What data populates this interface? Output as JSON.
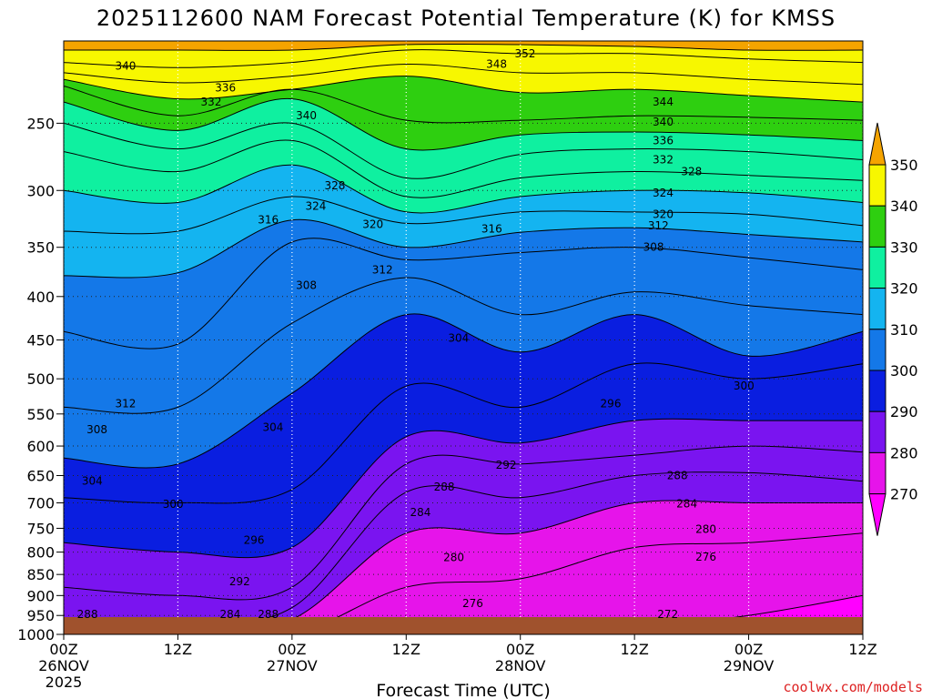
{
  "chart_data": {
    "type": "contour",
    "title": "2025112600 NAM Forecast Potential Temperature (K) for KMSS",
    "xlabel": "Forecast Time (UTC)",
    "ylabel": "",
    "credit": "coolwx.com/models",
    "x_hours": [
      0,
      12,
      24,
      36,
      48,
      60,
      72,
      84
    ],
    "x_ticks": [
      {
        "hour": 0,
        "line1": "00Z",
        "line2": "26NOV",
        "line3": "2025"
      },
      {
        "hour": 12,
        "line1": "12Z",
        "line2": "",
        "line3": ""
      },
      {
        "hour": 24,
        "line1": "00Z",
        "line2": "27NOV",
        "line3": ""
      },
      {
        "hour": 36,
        "line1": "12Z",
        "line2": "",
        "line3": ""
      },
      {
        "hour": 48,
        "line1": "00Z",
        "line2": "28NOV",
        "line3": ""
      },
      {
        "hour": 60,
        "line1": "12Z",
        "line2": "",
        "line3": ""
      },
      {
        "hour": 72,
        "line1": "00Z",
        "line2": "29NOV",
        "line3": ""
      },
      {
        "hour": 84,
        "line1": "12Z",
        "line2": "",
        "line3": ""
      }
    ],
    "y_axis": {
      "units": "hPa",
      "min": 200,
      "max": 1000,
      "scale": "log",
      "ticks": [
        250,
        300,
        350,
        400,
        450,
        500,
        550,
        600,
        650,
        700,
        750,
        800,
        850,
        900,
        950,
        1000
      ]
    },
    "colorbar": {
      "values": [
        350,
        340,
        330,
        320,
        310,
        300,
        290,
        280,
        270
      ],
      "bands": [
        {
          "from": 340,
          "to": 350,
          "color": "#f7f700"
        },
        {
          "from": 330,
          "to": 340,
          "color": "#2ecf10"
        },
        {
          "from": 320,
          "to": 330,
          "color": "#0ff0a0"
        },
        {
          "from": 310,
          "to": 320,
          "color": "#14b4f0"
        },
        {
          "from": 300,
          "to": 310,
          "color": "#1478e8"
        },
        {
          "from": 290,
          "to": 300,
          "color": "#0a1ee0"
        },
        {
          "from": 280,
          "to": 290,
          "color": "#7a14f0"
        },
        {
          "from": 270,
          "to": 280,
          "color": "#e614ea"
        }
      ],
      "over_color": "#f5a400",
      "under_color": "#ff00ff"
    },
    "isentropes": [
      {
        "theta": 352,
        "pressure_at_hours": [
          205,
          205,
          205,
          202,
          202,
          203,
          205,
          205
        ]
      },
      {
        "theta": 348,
        "pressure_at_hours": [
          212,
          215,
          212,
          205,
          207,
          207,
          210,
          212
        ]
      },
      {
        "theta": 344,
        "pressure_at_hours": [
          218,
          224,
          220,
          213,
          218,
          218,
          222,
          225
        ]
      },
      {
        "theta": 340,
        "pressure_at_hours": [
          222,
          234,
          228,
          220,
          230,
          228,
          232,
          236
        ]
      },
      {
        "theta": 336,
        "pressure_at_hours": [
          226,
          245,
          228,
          248,
          248,
          245,
          246,
          248
        ]
      },
      {
        "theta": 332,
        "pressure_at_hours": [
          236,
          255,
          234,
          268,
          258,
          256,
          258,
          262
        ]
      },
      {
        "theta": 328,
        "pressure_at_hours": [
          250,
          268,
          250,
          290,
          272,
          268,
          270,
          276
        ]
      },
      {
        "theta": 324,
        "pressure_at_hours": [
          270,
          285,
          262,
          305,
          290,
          285,
          288,
          292
        ]
      },
      {
        "theta": 320,
        "pressure_at_hours": [
          300,
          310,
          280,
          318,
          305,
          300,
          302,
          310
        ]
      },
      {
        "theta": 316,
        "pressure_at_hours": [
          335,
          335,
          305,
          328,
          318,
          318,
          320,
          330
        ]
      },
      {
        "theta": 312,
        "pressure_at_hours": [
          378,
          375,
          325,
          350,
          336,
          332,
          338,
          345
        ]
      },
      {
        "theta": 308,
        "pressure_at_hours": [
          440,
          455,
          345,
          362,
          355,
          350,
          360,
          372
        ]
      },
      {
        "theta": 304,
        "pressure_at_hours": [
          540,
          540,
          430,
          380,
          420,
          395,
          410,
          420
        ]
      },
      {
        "theta": 300,
        "pressure_at_hours": [
          620,
          630,
          520,
          420,
          465,
          420,
          470,
          440
        ]
      },
      {
        "theta": 296,
        "pressure_at_hours": [
          690,
          700,
          675,
          510,
          540,
          480,
          500,
          480
        ]
      },
      {
        "theta": 292,
        "pressure_at_hours": [
          780,
          800,
          790,
          585,
          595,
          560,
          560,
          560
        ]
      },
      {
        "theta": 288,
        "pressure_at_hours": [
          880,
          900,
          880,
          630,
          630,
          615,
          600,
          610
        ]
      },
      {
        "theta": 284,
        "pressure_at_hours": [
          960,
          975,
          930,
          680,
          690,
          650,
          645,
          660
        ]
      },
      {
        "theta": 280,
        "pressure_at_hours": [
          1000,
          1000,
          960,
          760,
          760,
          700,
          700,
          700
        ]
      },
      {
        "theta": 276,
        "pressure_at_hours": [
          1000,
          1000,
          1000,
          880,
          860,
          790,
          780,
          760
        ]
      },
      {
        "theta": 272,
        "pressure_at_hours": [
          1000,
          1000,
          1000,
          990,
          960,
          980,
          950,
          900
        ]
      }
    ],
    "contour_labels": [
      {
        "text": "352",
        "hour": 48.5,
        "p": 207
      },
      {
        "text": "348",
        "hour": 45.5,
        "p": 213
      },
      {
        "text": "340",
        "hour": 6.5,
        "p": 214
      },
      {
        "text": "336",
        "hour": 17.0,
        "p": 227
      },
      {
        "text": "332",
        "hour": 15.5,
        "p": 236
      },
      {
        "text": "340",
        "hour": 25.5,
        "p": 245
      },
      {
        "text": "344",
        "hour": 63.0,
        "p": 236
      },
      {
        "text": "340",
        "hour": 63.0,
        "p": 249
      },
      {
        "text": "336",
        "hour": 63.0,
        "p": 262
      },
      {
        "text": "332",
        "hour": 63.0,
        "p": 276
      },
      {
        "text": "328",
        "hour": 66.0,
        "p": 285
      },
      {
        "text": "328",
        "hour": 28.5,
        "p": 296
      },
      {
        "text": "324",
        "hour": 63.0,
        "p": 302
      },
      {
        "text": "320",
        "hour": 63.0,
        "p": 320
      },
      {
        "text": "324",
        "hour": 26.5,
        "p": 313
      },
      {
        "text": "316",
        "hour": 21.5,
        "p": 325
      },
      {
        "text": "320",
        "hour": 32.5,
        "p": 329
      },
      {
        "text": "316",
        "hour": 45.0,
        "p": 333
      },
      {
        "text": "312",
        "hour": 62.5,
        "p": 330
      },
      {
        "text": "308",
        "hour": 62.0,
        "p": 350
      },
      {
        "text": "312",
        "hour": 33.5,
        "p": 372
      },
      {
        "text": "308",
        "hour": 25.5,
        "p": 388
      },
      {
        "text": "304",
        "hour": 41.5,
        "p": 448
      },
      {
        "text": "312",
        "hour": 6.5,
        "p": 535
      },
      {
        "text": "308",
        "hour": 3.5,
        "p": 574
      },
      {
        "text": "304",
        "hour": 22.0,
        "p": 570
      },
      {
        "text": "300",
        "hour": 71.5,
        "p": 510
      },
      {
        "text": "296",
        "hour": 57.5,
        "p": 535
      },
      {
        "text": "304",
        "hour": 3.0,
        "p": 660
      },
      {
        "text": "300",
        "hour": 11.5,
        "p": 703
      },
      {
        "text": "292",
        "hour": 46.5,
        "p": 632
      },
      {
        "text": "288",
        "hour": 40.0,
        "p": 670
      },
      {
        "text": "288",
        "hour": 64.5,
        "p": 650
      },
      {
        "text": "284",
        "hour": 65.5,
        "p": 702
      },
      {
        "text": "284",
        "hour": 37.5,
        "p": 718
      },
      {
        "text": "280",
        "hour": 67.5,
        "p": 752
      },
      {
        "text": "296",
        "hour": 20.0,
        "p": 775
      },
      {
        "text": "280",
        "hour": 41.0,
        "p": 812
      },
      {
        "text": "276",
        "hour": 67.5,
        "p": 811
      },
      {
        "text": "292",
        "hour": 18.5,
        "p": 867
      },
      {
        "text": "276",
        "hour": 43.0,
        "p": 920
      },
      {
        "text": "288",
        "hour": 2.5,
        "p": 955
      },
      {
        "text": "288",
        "hour": 21.5,
        "p": 960
      },
      {
        "text": "284",
        "hour": 17.5,
        "p": 1000
      },
      {
        "text": "272",
        "hour": 63.5,
        "p": 990
      }
    ],
    "terrain_color": "#a0522d"
  }
}
